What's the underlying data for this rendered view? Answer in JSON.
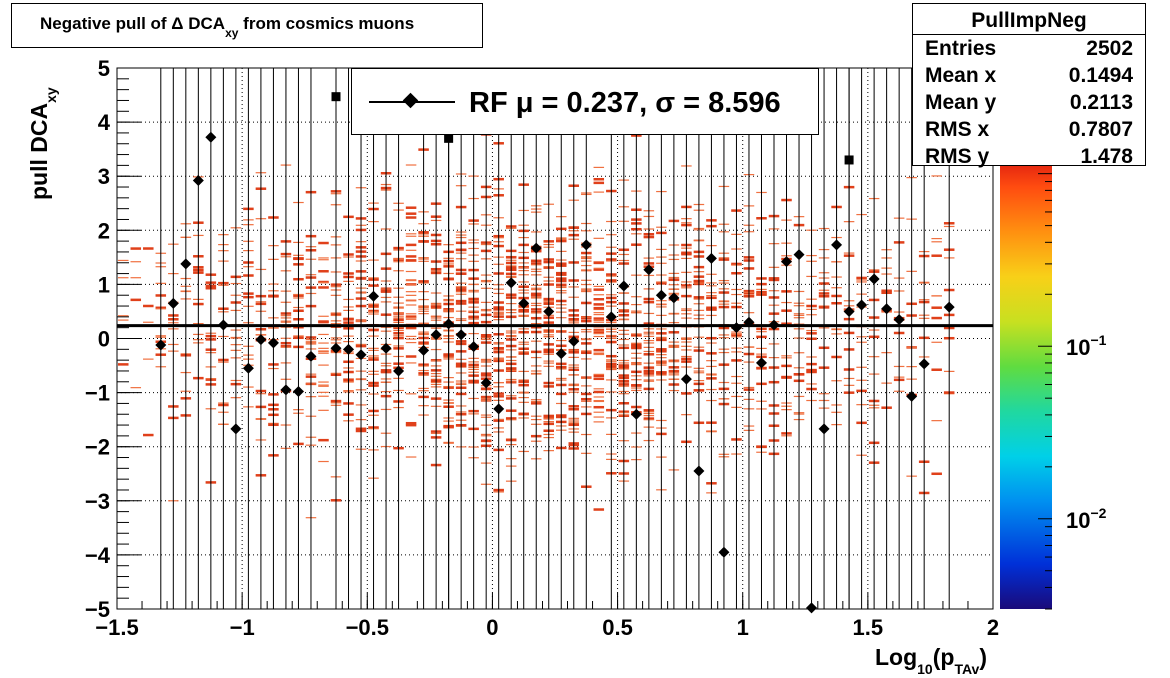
{
  "chart_data": {
    "type": "scatter",
    "title": "Negative pull of Δ DCA",
    "title_sub": "xy",
    "title_suffix": " from cosmics muons",
    "xlabel": "Log",
    "xlabel_sub1": "10",
    "xlabel_mid": "(p",
    "xlabel_sub2": "TAv",
    "xlabel_end": ")",
    "ylabel": "pull DCA",
    "ylabel_sub": "xy",
    "xlim": [
      -1.5,
      2
    ],
    "ylim": [
      -5,
      5
    ],
    "x_ticks": [
      -1.5,
      -1,
      -0.5,
      0,
      0.5,
      1,
      1.5,
      2
    ],
    "x_tick_labels": [
      "−1.5",
      "−1",
      "−0.5",
      "0",
      "0.5",
      "1",
      "1.5",
      "2"
    ],
    "y_ticks": [
      -5,
      -4,
      -3,
      -2,
      -1,
      0,
      1,
      2,
      3,
      4,
      5
    ],
    "y_tick_labels": [
      "−5",
      "−4",
      "−3",
      "−2",
      "−1",
      "0",
      "1",
      "2",
      "3",
      "4",
      "5"
    ],
    "grid": true,
    "colorbar": {
      "scale": "log",
      "range": [
        0.003,
        1.2
      ],
      "tick_labels": [
        {
          "value": 0.1,
          "base": "10",
          "exp": "−1"
        },
        {
          "value": 0.01,
          "base": "10",
          "exp": "−2"
        }
      ]
    },
    "fit_line": {
      "y": 0.237
    },
    "series": [
      {
        "name": "RF",
        "legend_label": "RF μ =  0.237, σ =   8.596",
        "marker": "diamond",
        "x": [
          -1.325,
          -1.275,
          -1.225,
          -1.175,
          -1.125,
          -1.075,
          -1.025,
          -0.975,
          -0.925,
          -0.875,
          -0.825,
          -0.775,
          -0.725,
          -0.625,
          -0.575,
          -0.525,
          -0.475,
          -0.425,
          -0.375,
          -0.275,
          -0.225,
          -0.175,
          -0.125,
          -0.075,
          -0.025,
          0.025,
          0.075,
          0.125,
          0.175,
          0.225,
          0.275,
          0.325,
          0.375,
          0.475,
          0.525,
          0.575,
          0.625,
          0.675,
          0.725,
          0.775,
          0.825,
          0.875,
          0.925,
          0.975,
          1.025,
          1.075,
          1.125,
          1.175,
          1.225,
          1.275,
          1.325,
          1.375,
          1.425,
          1.475,
          1.525,
          1.575,
          1.625,
          1.675,
          1.725,
          1.825
        ],
        "y": [
          -0.12,
          0.65,
          1.38,
          2.92,
          3.72,
          0.25,
          -1.67,
          -0.55,
          -0.02,
          -0.08,
          -0.95,
          -0.98,
          -0.33,
          -0.18,
          -0.2,
          -0.3,
          0.78,
          -0.18,
          -0.6,
          -0.22,
          0.07,
          0.27,
          0.07,
          -0.15,
          -0.82,
          -1.3,
          1.03,
          0.65,
          1.67,
          0.5,
          -0.28,
          -0.05,
          1.73,
          0.4,
          0.97,
          -1.4,
          1.27,
          0.8,
          0.75,
          -0.75,
          -2.45,
          1.48,
          -3.95,
          0.2,
          0.3,
          -0.45,
          0.25,
          1.42,
          1.55,
          -4.98,
          -1.67,
          1.73,
          0.5,
          0.62,
          1.1,
          0.55,
          0.35,
          -1.07,
          -0.47,
          0.58
        ]
      },
      {
        "name": "",
        "marker": "square",
        "x": [
          -0.625,
          -0.175,
          1.425
        ],
        "y": [
          4.47,
          3.7,
          3.3
        ]
      }
    ]
  },
  "legend": {
    "text": "RF μ =  0.237, σ =   8.596"
  },
  "stats": {
    "title": "PullImpNeg",
    "rows": [
      {
        "label": "Entries",
        "value": "2502"
      },
      {
        "label": "Mean x",
        "value": "0.1494"
      },
      {
        "label": "Mean y",
        "value": "0.2113"
      },
      {
        "label": "RMS x",
        "value": "0.7807"
      },
      {
        "label": "RMS y",
        "value": "1.478"
      }
    ]
  }
}
